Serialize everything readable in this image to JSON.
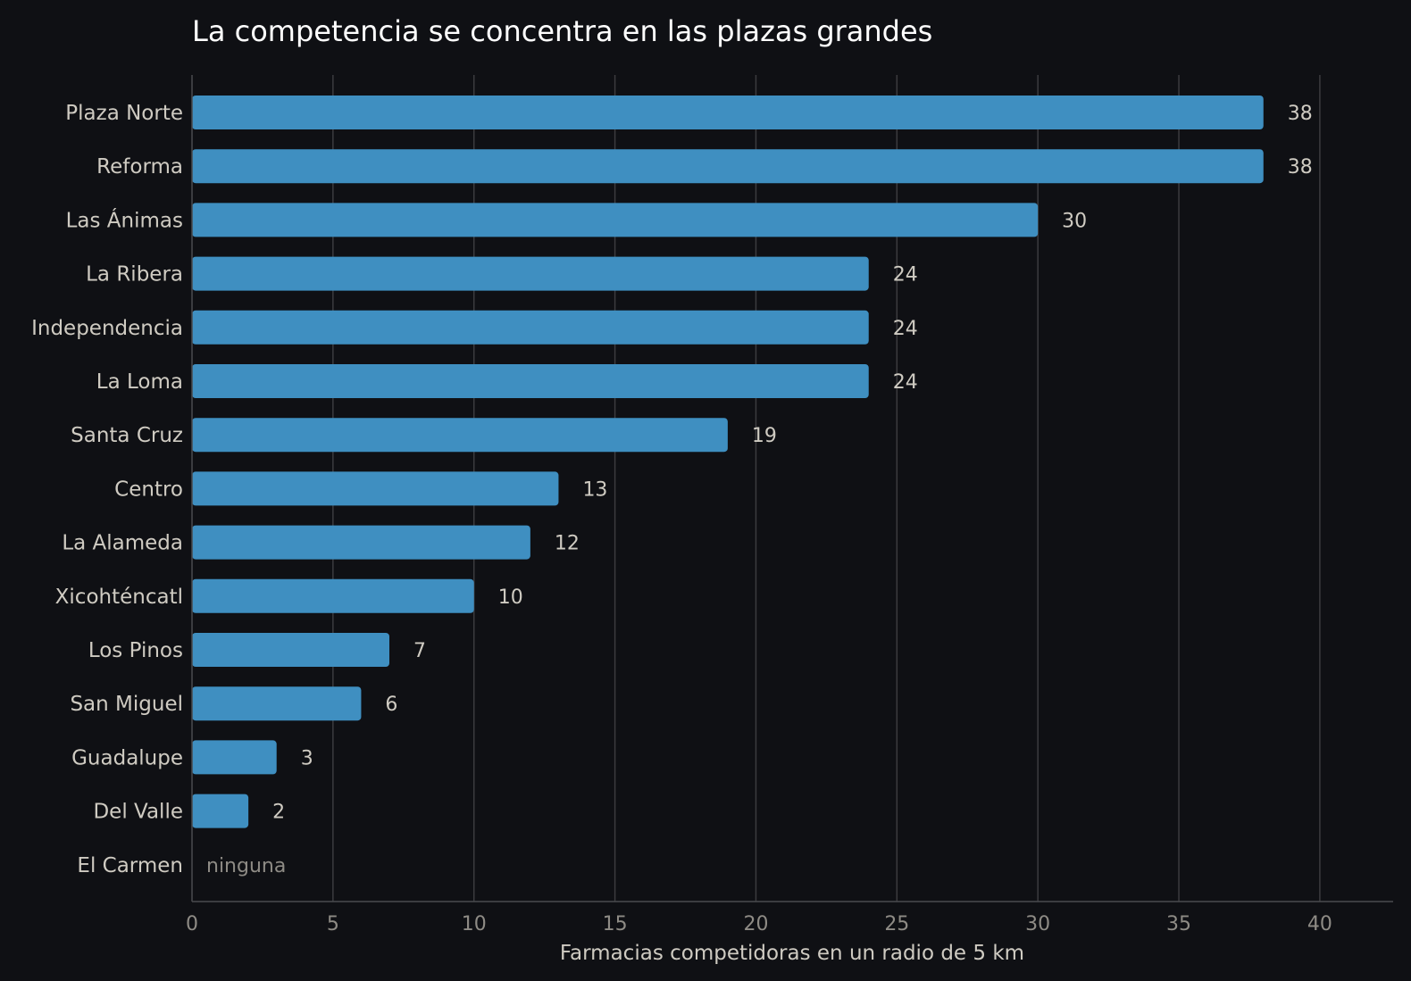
{
  "chart_data": {
    "type": "bar",
    "orientation": "horizontal",
    "title": "La competencia se concentra en las plazas grandes",
    "xlabel": "Farmacias competidoras en un radio de 5 km",
    "ylabel": "",
    "categories": [
      "Plaza Norte",
      "Reforma",
      "Las Ánimas",
      "La Ribera",
      "Independencia",
      "La Loma",
      "Santa Cruz",
      "Centro",
      "La Alameda",
      "Xicohténcatl",
      "Los Pinos",
      "San Miguel",
      "Guadalupe",
      "Del Valle",
      "El Carmen"
    ],
    "values": [
      38,
      38,
      30,
      24,
      24,
      24,
      19,
      13,
      12,
      10,
      7,
      6,
      3,
      2,
      0
    ],
    "zero_label": "ninguna",
    "xlim": [
      0,
      42.6
    ],
    "xticks": [
      0,
      5,
      10,
      15,
      20,
      25,
      30,
      35,
      40
    ],
    "grid": "vertical",
    "bar_color": "#3f8fc1",
    "background": "#0f1014"
  }
}
